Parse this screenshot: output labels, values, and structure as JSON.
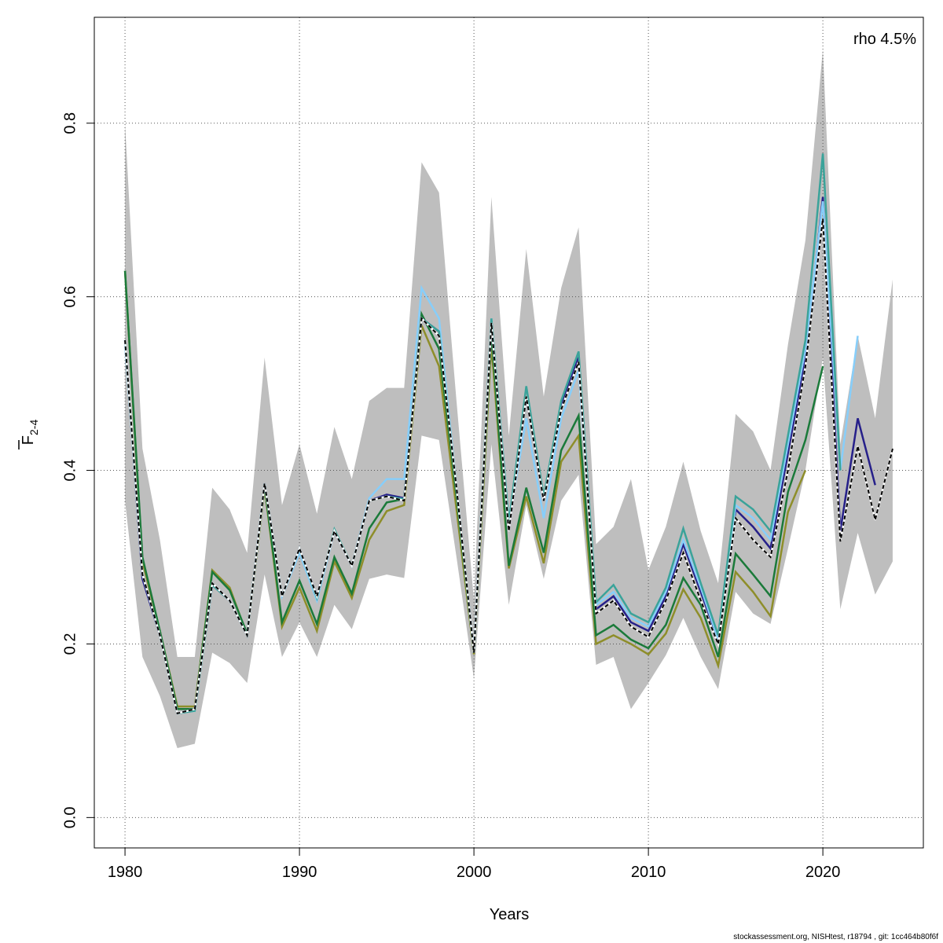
{
  "chart_data": {
    "type": "line",
    "ylabel": {
      "main": "F",
      "sub": "2-4"
    },
    "xlabel": "Years",
    "annotation": "rho 4.5%",
    "footer": "stockassessment.org, NISHtest, r18794 , git: 1cc464b80f6f",
    "xlim": [
      1978.24,
      2025.76
    ],
    "ylim": [
      -0.035,
      0.922
    ],
    "xticks": [
      1980,
      1990,
      2000,
      2010,
      2020
    ],
    "yticks": [
      {
        "value": 0,
        "label": "0.0"
      },
      0.2,
      0.4,
      0.6,
      0.8
    ],
    "grid": true,
    "x": [
      1980,
      1981,
      1982,
      1983,
      1984,
      1985,
      1986,
      1987,
      1988,
      1989,
      1990,
      1991,
      1992,
      1993,
      1994,
      1995,
      1996,
      1997,
      1998,
      1999,
      2000,
      2001,
      2002,
      2003,
      2004,
      2005,
      2006,
      2007,
      2008,
      2009,
      2010,
      2011,
      2012,
      2013,
      2014,
      2015,
      2016,
      2017,
      2018,
      2019,
      2020,
      2021,
      2022,
      2023,
      2024
    ],
    "band": {
      "color": "#bebebe",
      "upper": [
        0.8,
        0.425,
        0.32,
        0.185,
        0.185,
        0.38,
        0.355,
        0.305,
        0.53,
        0.36,
        0.43,
        0.35,
        0.45,
        0.39,
        0.48,
        0.495,
        0.495,
        0.755,
        0.72,
        0.48,
        0.25,
        0.715,
        0.44,
        0.655,
        0.485,
        0.61,
        0.68,
        0.315,
        0.335,
        0.39,
        0.285,
        0.335,
        0.41,
        0.33,
        0.27,
        0.465,
        0.445,
        0.4,
        0.545,
        0.665,
        0.885,
        0.43,
        0.555,
        0.46,
        0.62
      ],
      "lower": [
        0.365,
        0.185,
        0.14,
        0.08,
        0.085,
        0.19,
        0.178,
        0.155,
        0.28,
        0.185,
        0.225,
        0.185,
        0.245,
        0.217,
        0.275,
        0.28,
        0.276,
        0.44,
        0.435,
        0.3,
        0.16,
        0.43,
        0.245,
        0.36,
        0.275,
        0.365,
        0.395,
        0.176,
        0.185,
        0.125,
        0.155,
        0.187,
        0.23,
        0.185,
        0.148,
        0.26,
        0.235,
        0.223,
        0.31,
        0.4,
        0.53,
        0.24,
        0.328,
        0.257,
        0.295
      ]
    },
    "series": [
      {
        "color": "#8e8e2a",
        "values": [
          0.63,
          0.295,
          0.215,
          0.128,
          0.128,
          0.285,
          0.265,
          0.21,
          0.38,
          0.22,
          0.265,
          0.215,
          0.295,
          0.253,
          0.32,
          0.353,
          0.36,
          0.567,
          0.52,
          0.355,
          0.188,
          0.545,
          0.287,
          0.37,
          0.293,
          0.41,
          0.44,
          0.2,
          0.21,
          0.2,
          0.188,
          0.212,
          0.263,
          0.23,
          0.175,
          0.283,
          0.26,
          0.232,
          0.352,
          0.4,
          null,
          null,
          null,
          null,
          null
        ]
      },
      {
        "color": "#1b7a3a",
        "values": [
          0.63,
          0.3,
          0.215,
          0.125,
          0.125,
          0.283,
          0.262,
          0.212,
          0.383,
          0.225,
          0.273,
          0.223,
          0.3,
          0.258,
          0.333,
          0.363,
          0.367,
          0.58,
          0.54,
          0.37,
          0.19,
          0.56,
          0.29,
          0.38,
          0.305,
          0.423,
          0.463,
          0.21,
          0.222,
          0.205,
          0.195,
          0.222,
          0.276,
          0.245,
          0.185,
          0.304,
          0.28,
          0.255,
          0.375,
          0.435,
          0.52,
          null,
          null,
          null,
          null
        ]
      },
      {
        "color": "#26208a",
        "values": [
          0.55,
          0.275,
          0.21,
          0.12,
          0.125,
          0.268,
          0.25,
          0.21,
          0.385,
          0.255,
          0.31,
          0.255,
          0.33,
          0.29,
          0.365,
          0.372,
          0.368,
          0.575,
          0.56,
          0.38,
          0.19,
          0.57,
          0.33,
          0.485,
          0.365,
          0.475,
          0.53,
          0.24,
          0.255,
          0.225,
          0.215,
          0.255,
          0.315,
          0.26,
          0.205,
          0.355,
          0.335,
          0.31,
          0.42,
          0.53,
          0.715,
          0.33,
          0.46,
          0.383,
          null
        ]
      },
      {
        "color": "#87cefa",
        "values": [
          0.545,
          0.28,
          0.21,
          0.12,
          0.123,
          0.27,
          0.25,
          0.21,
          0.385,
          0.255,
          0.305,
          0.25,
          0.33,
          0.29,
          0.368,
          0.39,
          0.39,
          0.61,
          0.575,
          0.38,
          0.19,
          0.575,
          0.34,
          0.46,
          0.345,
          0.46,
          0.515,
          0.245,
          0.26,
          0.23,
          0.22,
          0.26,
          0.32,
          0.265,
          0.205,
          0.36,
          0.345,
          0.32,
          0.43,
          0.54,
          0.71,
          0.4,
          0.555,
          null,
          null
        ]
      },
      {
        "color": "#3aa39a",
        "values": [
          0.55,
          0.28,
          0.21,
          0.12,
          0.123,
          0.268,
          0.25,
          0.21,
          0.385,
          0.255,
          0.31,
          0.253,
          0.332,
          0.29,
          0.365,
          0.37,
          0.367,
          0.575,
          0.56,
          0.38,
          0.19,
          0.575,
          0.34,
          0.497,
          0.37,
          0.48,
          0.537,
          0.248,
          0.268,
          0.235,
          0.225,
          0.265,
          0.333,
          0.27,
          0.21,
          0.37,
          0.355,
          0.33,
          0.44,
          0.55,
          0.765,
          0.4,
          null,
          null,
          null
        ]
      },
      {
        "color": "#000000",
        "dashed": true,
        "values": [
          0.55,
          0.28,
          0.21,
          0.12,
          0.125,
          0.27,
          0.25,
          0.21,
          0.385,
          0.255,
          0.31,
          0.255,
          0.33,
          0.29,
          0.365,
          0.37,
          0.365,
          0.575,
          0.555,
          0.38,
          0.19,
          0.57,
          0.33,
          0.485,
          0.365,
          0.47,
          0.525,
          0.235,
          0.25,
          0.22,
          0.208,
          0.25,
          0.305,
          0.25,
          0.2,
          0.345,
          0.32,
          0.3,
          0.4,
          0.52,
          0.69,
          0.318,
          0.428,
          0.343,
          0.425
        ]
      }
    ]
  }
}
